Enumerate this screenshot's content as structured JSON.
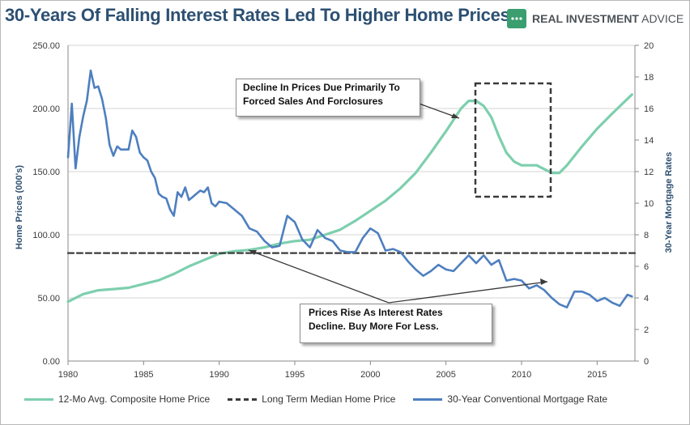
{
  "title": "30-Years Of Falling Interest Rates Led To Higher Home Prices",
  "brand": {
    "bold": "REAL INVESTMENT",
    "regular": " ADVICE",
    "icon": "dots-icon"
  },
  "colors": {
    "home_price": "#7dcfae",
    "median": "#3b3b3b",
    "mortgage": "#4e7fbf",
    "title": "#2d5072"
  },
  "annotations": {
    "top": "Decline In Prices Due Primarily To\nForced Sales And Forclosures",
    "bottom": "Prices Rise As Interest Rates\nDecline.  Buy More For Less."
  },
  "chart_data": {
    "type": "line",
    "xlabel": "",
    "xlim": [
      1980,
      2017.5
    ],
    "xticks": [
      "1980",
      "1985",
      "1990",
      "1995",
      "2000",
      "2005",
      "2010",
      "2015"
    ],
    "y_left": {
      "label": "Home Prices (000's)",
      "lim": [
        0,
        250
      ],
      "ticks": [
        "0.00",
        "50.00",
        "100.00",
        "150.00",
        "200.00",
        "250.00"
      ]
    },
    "y_right": {
      "label": "30-Year Mortgage Rates",
      "lim": [
        0,
        20
      ],
      "ticks": [
        "0",
        "2",
        "4",
        "6",
        "8",
        "10",
        "12",
        "14",
        "16",
        "18",
        "20"
      ]
    },
    "grid": "horizontal",
    "legend_position": "bottom",
    "series": [
      {
        "name": "12-Mo Avg. Composite Home Price",
        "axis": "left",
        "x": [
          1980,
          1981,
          1982,
          1983,
          1984,
          1985,
          1986,
          1987,
          1988,
          1989,
          1990,
          1991,
          1992,
          1993,
          1994,
          1995,
          1996,
          1997,
          1998,
          1999,
          2000,
          2001,
          2002,
          2003,
          2004,
          2005,
          2006,
          2006.5,
          2007,
          2007.5,
          2008,
          2008.5,
          2009,
          2009.5,
          2010,
          2011,
          2011.5,
          2012,
          2012.5,
          2013,
          2014,
          2015,
          2016,
          2017.3
        ],
        "values": [
          47,
          53,
          56,
          57,
          58,
          61,
          64,
          69,
          75,
          80,
          85,
          87,
          88,
          90,
          93,
          95,
          96,
          100,
          104,
          111,
          119,
          127,
          137,
          149,
          165,
          182,
          200,
          206,
          206,
          202,
          193,
          178,
          165,
          158,
          155,
          155,
          152,
          149,
          149,
          155,
          170,
          184,
          196,
          211
        ]
      },
      {
        "name": "Long Term Median Home Price",
        "axis": "left",
        "x": [
          1980,
          2017.5
        ],
        "values": [
          85.5,
          85.5
        ]
      },
      {
        "name": "30-Year Conventional Mortgage Rate",
        "axis": "right",
        "x": [
          1980,
          1980.25,
          1980.5,
          1980.75,
          1981,
          1981.25,
          1981.5,
          1981.75,
          1982,
          1982.25,
          1982.5,
          1982.75,
          1983,
          1983.25,
          1983.5,
          1983.75,
          1984,
          1984.25,
          1984.5,
          1984.75,
          1985,
          1985.25,
          1985.5,
          1985.75,
          1986,
          1986.25,
          1986.5,
          1986.75,
          1987,
          1987.25,
          1987.5,
          1987.75,
          1988,
          1988.25,
          1988.5,
          1988.75,
          1989,
          1989.25,
          1989.5,
          1989.75,
          1990,
          1990.5,
          1991,
          1991.5,
          1992,
          1992.5,
          1993,
          1993.5,
          1994,
          1994.5,
          1995,
          1995.5,
          1996,
          1996.5,
          1997,
          1997.5,
          1998,
          1998.5,
          1999,
          1999.5,
          2000,
          2000.5,
          2001,
          2001.5,
          2002,
          2002.5,
          2003,
          2003.5,
          2004,
          2004.5,
          2005,
          2005.5,
          2006,
          2006.5,
          2007,
          2007.5,
          2008,
          2008.5,
          2009,
          2009.5,
          2010,
          2010.5,
          2011,
          2011.5,
          2012,
          2012.5,
          2013,
          2013.5,
          2014,
          2014.5,
          2015,
          2015.5,
          2016,
          2016.5,
          2017,
          2017.3
        ],
        "values": [
          12.9,
          16.3,
          12.2,
          14.2,
          15.5,
          16.5,
          18.4,
          17.3,
          17.4,
          16.6,
          15.4,
          13.7,
          13.0,
          13.6,
          13.4,
          13.4,
          13.4,
          14.6,
          14.2,
          13.2,
          12.9,
          12.7,
          12.0,
          11.6,
          10.6,
          10.4,
          10.3,
          9.6,
          9.2,
          10.7,
          10.4,
          11.0,
          10.2,
          10.4,
          10.6,
          10.8,
          10.7,
          11.0,
          10.0,
          9.8,
          10.1,
          10.0,
          9.6,
          9.2,
          8.4,
          8.2,
          7.6,
          7.2,
          7.3,
          9.2,
          8.8,
          7.7,
          7.2,
          8.3,
          7.8,
          7.6,
          7.0,
          6.9,
          6.9,
          7.8,
          8.4,
          8.1,
          7.0,
          7.1,
          6.9,
          6.3,
          5.8,
          5.4,
          5.7,
          6.1,
          5.8,
          5.7,
          6.2,
          6.7,
          6.2,
          6.7,
          6.1,
          6.4,
          5.1,
          5.2,
          5.1,
          4.6,
          4.8,
          4.5,
          4.0,
          3.6,
          3.4,
          4.4,
          4.4,
          4.2,
          3.8,
          4.0,
          3.7,
          3.5,
          4.2,
          4.1
        ]
      }
    ]
  }
}
